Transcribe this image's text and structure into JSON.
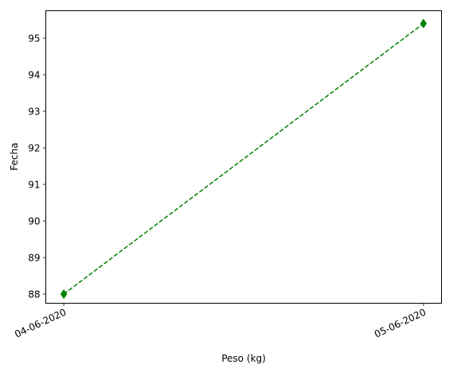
{
  "chart_data": {
    "type": "line",
    "title": "",
    "xlabel": "Peso (kg)",
    "ylabel": "Fecha",
    "categories": [
      "04-06-2020",
      "05-06-2020"
    ],
    "series": [
      {
        "values": [
          88.0,
          95.4
        ],
        "color": "#008000",
        "line_style": "dashed",
        "marker": "diamond"
      }
    ],
    "ylim": [
      87.75,
      95.75
    ],
    "yticks": [
      "88",
      "89",
      "90",
      "91",
      "92",
      "93",
      "94",
      "95"
    ],
    "grid": false,
    "legend": "none"
  }
}
